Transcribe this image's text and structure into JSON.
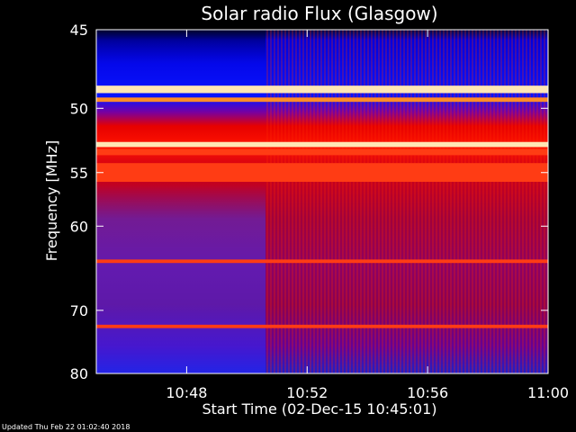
{
  "chart_data": {
    "type": "heatmap",
    "title": "Solar radio Flux (Glasgow)",
    "ylabel": "Frequency [MHz]",
    "xlabel": "Start Time (02-Dec-15 10:45:01)",
    "x_tick_labels": [
      "10:48",
      "10:52",
      "10:56",
      "11:00"
    ],
    "x_tick_minutes": [
      3,
      7,
      11,
      15
    ],
    "x_range_minutes_after_start": [
      0,
      15
    ],
    "y_tick_labels": [
      "45",
      "50",
      "55",
      "60",
      "70",
      "80"
    ],
    "y_ticks": [
      45,
      50,
      55,
      60,
      70,
      80
    ],
    "y_scale": "reciprocal",
    "y_range_mhz": [
      45,
      80
    ],
    "emission_bands_mhz": [
      {
        "center": 48.7,
        "width": 0.5,
        "level": "very-high"
      },
      {
        "center": 49.4,
        "width": 0.3,
        "level": "medium"
      },
      {
        "center": 52.7,
        "width": 0.4,
        "level": "very-high"
      },
      {
        "center": 53.3,
        "width": 0.5,
        "level": "high"
      },
      {
        "center": 55.0,
        "width": 1.6,
        "level": "high"
      },
      {
        "center": 63.8,
        "width": 0.4,
        "level": "high"
      },
      {
        "center": 72.3,
        "width": 0.5,
        "level": "high"
      }
    ],
    "colormap": [
      "#000032",
      "#0000c8",
      "#3232ff",
      "#6400c8",
      "#a00030",
      "#e60000",
      "#ff3200",
      "#ff9632",
      "#ffffff"
    ],
    "footer": "Updated Thu Feb 22 01:02:40 2018"
  }
}
